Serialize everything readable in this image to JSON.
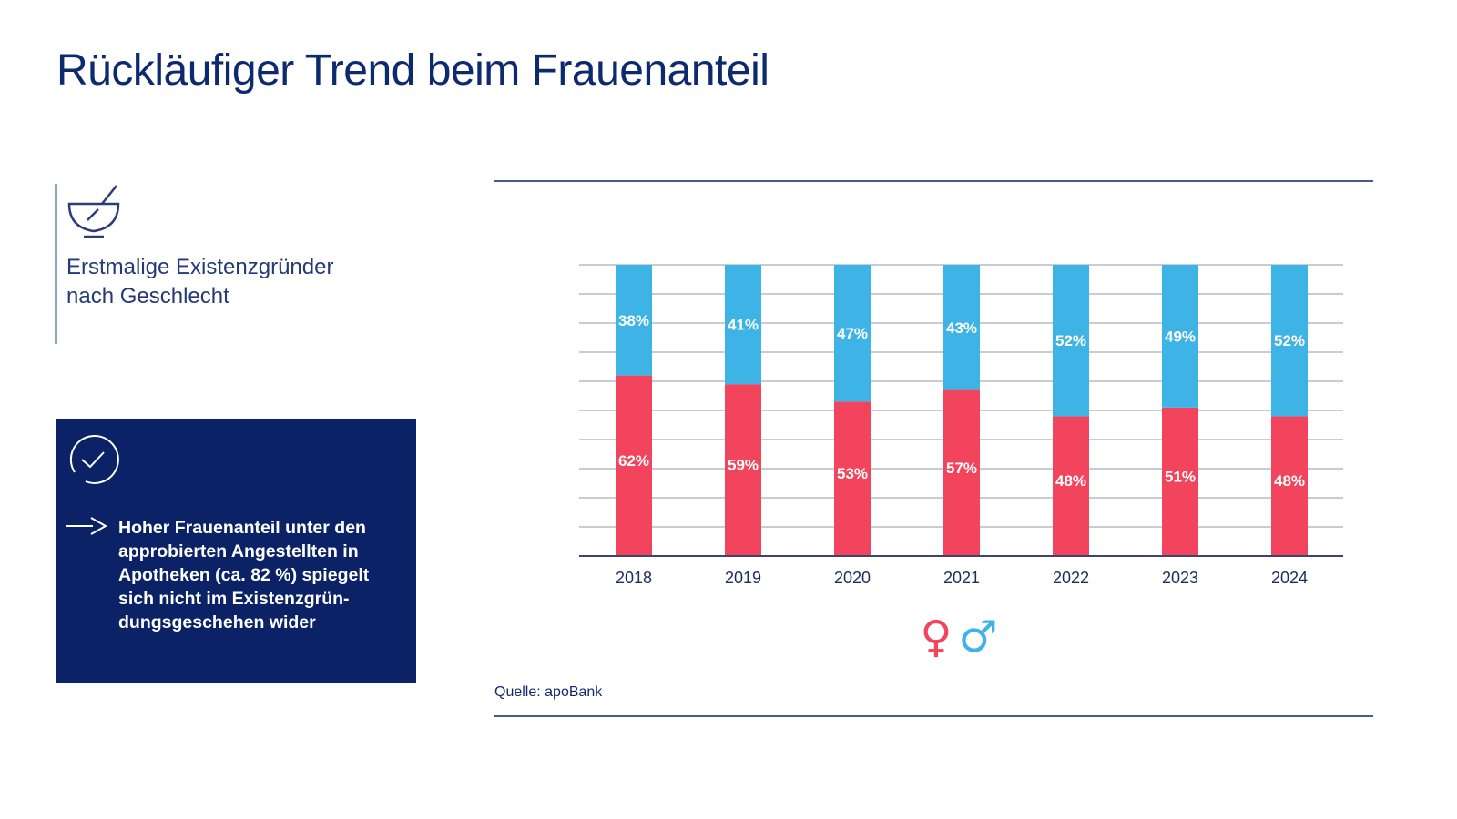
{
  "header": {
    "title": "Rückläufiger Trend beim Frauenanteil"
  },
  "sidebar": {
    "subtitle_line1": "Erstmalige Existenzgründer",
    "subtitle_line2": "nach Geschlecht",
    "callout": "Hoher Frauenanteil unter den approbierten Angestellten in Apotheken (ca. 82 %) spiegelt sich nicht im Existenzgrün­dungsgeschehen wider"
  },
  "source": "Quelle: apoBank",
  "colors": {
    "female": "#f2445c",
    "male": "#3db3e6",
    "navy": "#0b2266"
  },
  "chart_data": {
    "type": "bar",
    "stacked": true,
    "categories": [
      "2018",
      "2019",
      "2020",
      "2021",
      "2022",
      "2023",
      "2024"
    ],
    "series": [
      {
        "name": "female",
        "values": [
          62,
          59,
          53,
          57,
          48,
          51,
          48
        ],
        "labels": [
          "62%",
          "59%",
          "53%",
          "57%",
          "48%",
          "51%",
          "48%"
        ]
      },
      {
        "name": "male",
        "values": [
          38,
          41,
          47,
          43,
          52,
          49,
          52
        ],
        "labels": [
          "38%",
          "41%",
          "47%",
          "43%",
          "52%",
          "49%",
          "52%"
        ]
      }
    ],
    "ylim": [
      0,
      100
    ],
    "grid": true,
    "legend": {
      "position": "bottom-center",
      "entries": [
        "♀",
        "♂"
      ]
    }
  }
}
